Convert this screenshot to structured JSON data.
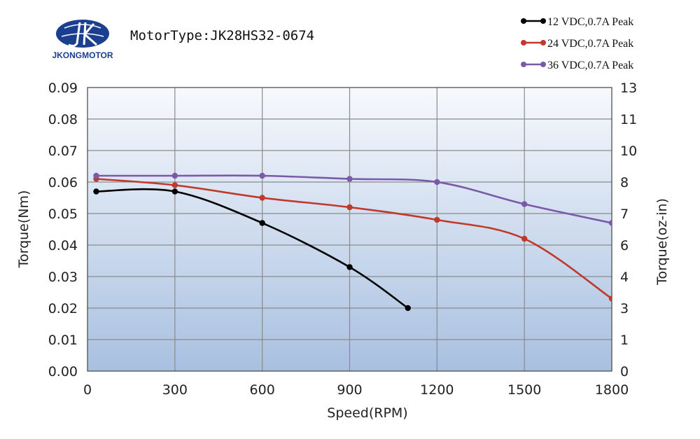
{
  "brand": {
    "name": "JKONGMOTOR",
    "logo_color": "#1b3e8e"
  },
  "chart_data": {
    "type": "line",
    "title": "MotorType:JK28HS32-0674",
    "xlabel": "Speed(RPM)",
    "ylabel": "Torque(Nm)",
    "y2label": "Torque(oz-in)",
    "xlim": [
      0,
      1800
    ],
    "ylim": [
      0,
      0.09
    ],
    "y2lim": [
      0,
      13
    ],
    "xticks": [
      "0",
      "300",
      "600",
      "900",
      "1200",
      "1500",
      "1800"
    ],
    "yticks": [
      "0.00",
      "0.01",
      "0.02",
      "0.03",
      "0.04",
      "0.05",
      "0.06",
      "0.07",
      "0.08",
      "0.09"
    ],
    "y2ticks": [
      "0",
      "1",
      "3",
      "4",
      "6",
      "7",
      "8",
      "10",
      "11",
      "13"
    ],
    "grid": true,
    "legend_position": "top-right",
    "series": [
      {
        "name": "12 VDC,0.7A Peak",
        "color": "#000000",
        "x": [
          30,
          300,
          600,
          900,
          1100
        ],
        "y": [
          0.057,
          0.057,
          0.047,
          0.033,
          0.02
        ]
      },
      {
        "name": "24 VDC,0.7A Peak",
        "color": "#c0392b",
        "x": [
          30,
          300,
          600,
          900,
          1200,
          1500,
          1800
        ],
        "y": [
          0.061,
          0.059,
          0.055,
          0.052,
          0.048,
          0.042,
          0.023
        ]
      },
      {
        "name": "36 VDC,0.7A Peak",
        "color": "#7a5aa8",
        "x": [
          30,
          300,
          600,
          900,
          1200,
          1500,
          1800
        ],
        "y": [
          0.062,
          0.062,
          0.062,
          0.061,
          0.06,
          0.053,
          0.047
        ]
      }
    ]
  }
}
